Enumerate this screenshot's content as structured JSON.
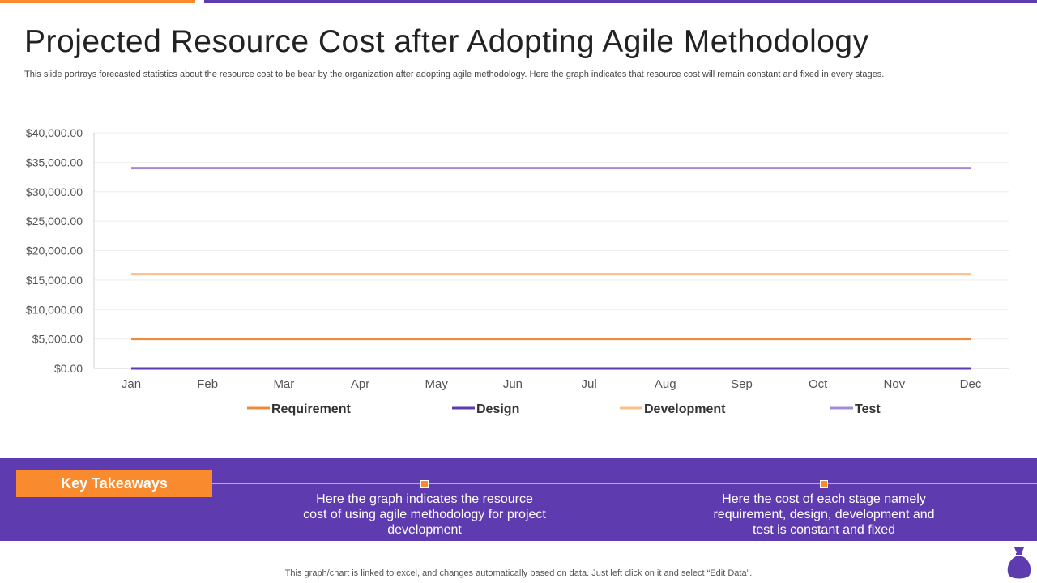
{
  "title": "Projected Resource Cost after Adopting Agile Methodology",
  "subtitle": "This slide portrays forecasted statistics about the resource cost to be bear by the organization after adopting agile methodology. Here the graph indicates that resource cost will remain constant and fixed in every stages.",
  "chart_data": {
    "type": "line",
    "categories": [
      "Jan",
      "Feb",
      "Mar",
      "Apr",
      "May",
      "Jun",
      "Jul",
      "Aug",
      "Sep",
      "Oct",
      "Nov",
      "Dec"
    ],
    "ylim": [
      0,
      40000
    ],
    "yticks": [
      "$0.00",
      "$5,000.00",
      "$10,000.00",
      "$15,000.00",
      "$20,000.00",
      "$25,000.00",
      "$30,000.00",
      "$35,000.00",
      "$40,000.00"
    ],
    "grid": true,
    "legend": "bottom",
    "series": [
      {
        "name": "Requirement",
        "color": "#ed8b3d",
        "values": [
          5000,
          5000,
          5000,
          5000,
          5000,
          5000,
          5000,
          5000,
          5000,
          5000,
          5000,
          5000
        ]
      },
      {
        "name": "Design",
        "color": "#5f3bb0",
        "values": [
          0,
          0,
          0,
          0,
          0,
          0,
          0,
          0,
          0,
          0,
          0,
          0
        ]
      },
      {
        "name": "Development",
        "color": "#f8c08a",
        "values": [
          16000,
          16000,
          16000,
          16000,
          16000,
          16000,
          16000,
          16000,
          16000,
          16000,
          16000,
          16000
        ]
      },
      {
        "name": "Test",
        "color": "#a48bd6",
        "values": [
          34000,
          34000,
          34000,
          34000,
          34000,
          34000,
          34000,
          34000,
          34000,
          34000,
          34000,
          34000
        ]
      }
    ]
  },
  "takeaways": {
    "label": "Key Takeaways",
    "items": [
      "Here the graph indicates the resource cost of using agile methodology for project development",
      "Here the cost of each stage namely requirement, design, development and test is constant and fixed"
    ]
  },
  "footer": "This graph/chart is linked to excel, and changes automatically based on data. Just left click on it and select “Edit Data”.",
  "icons": {
    "logo": "money-bag-icon"
  }
}
